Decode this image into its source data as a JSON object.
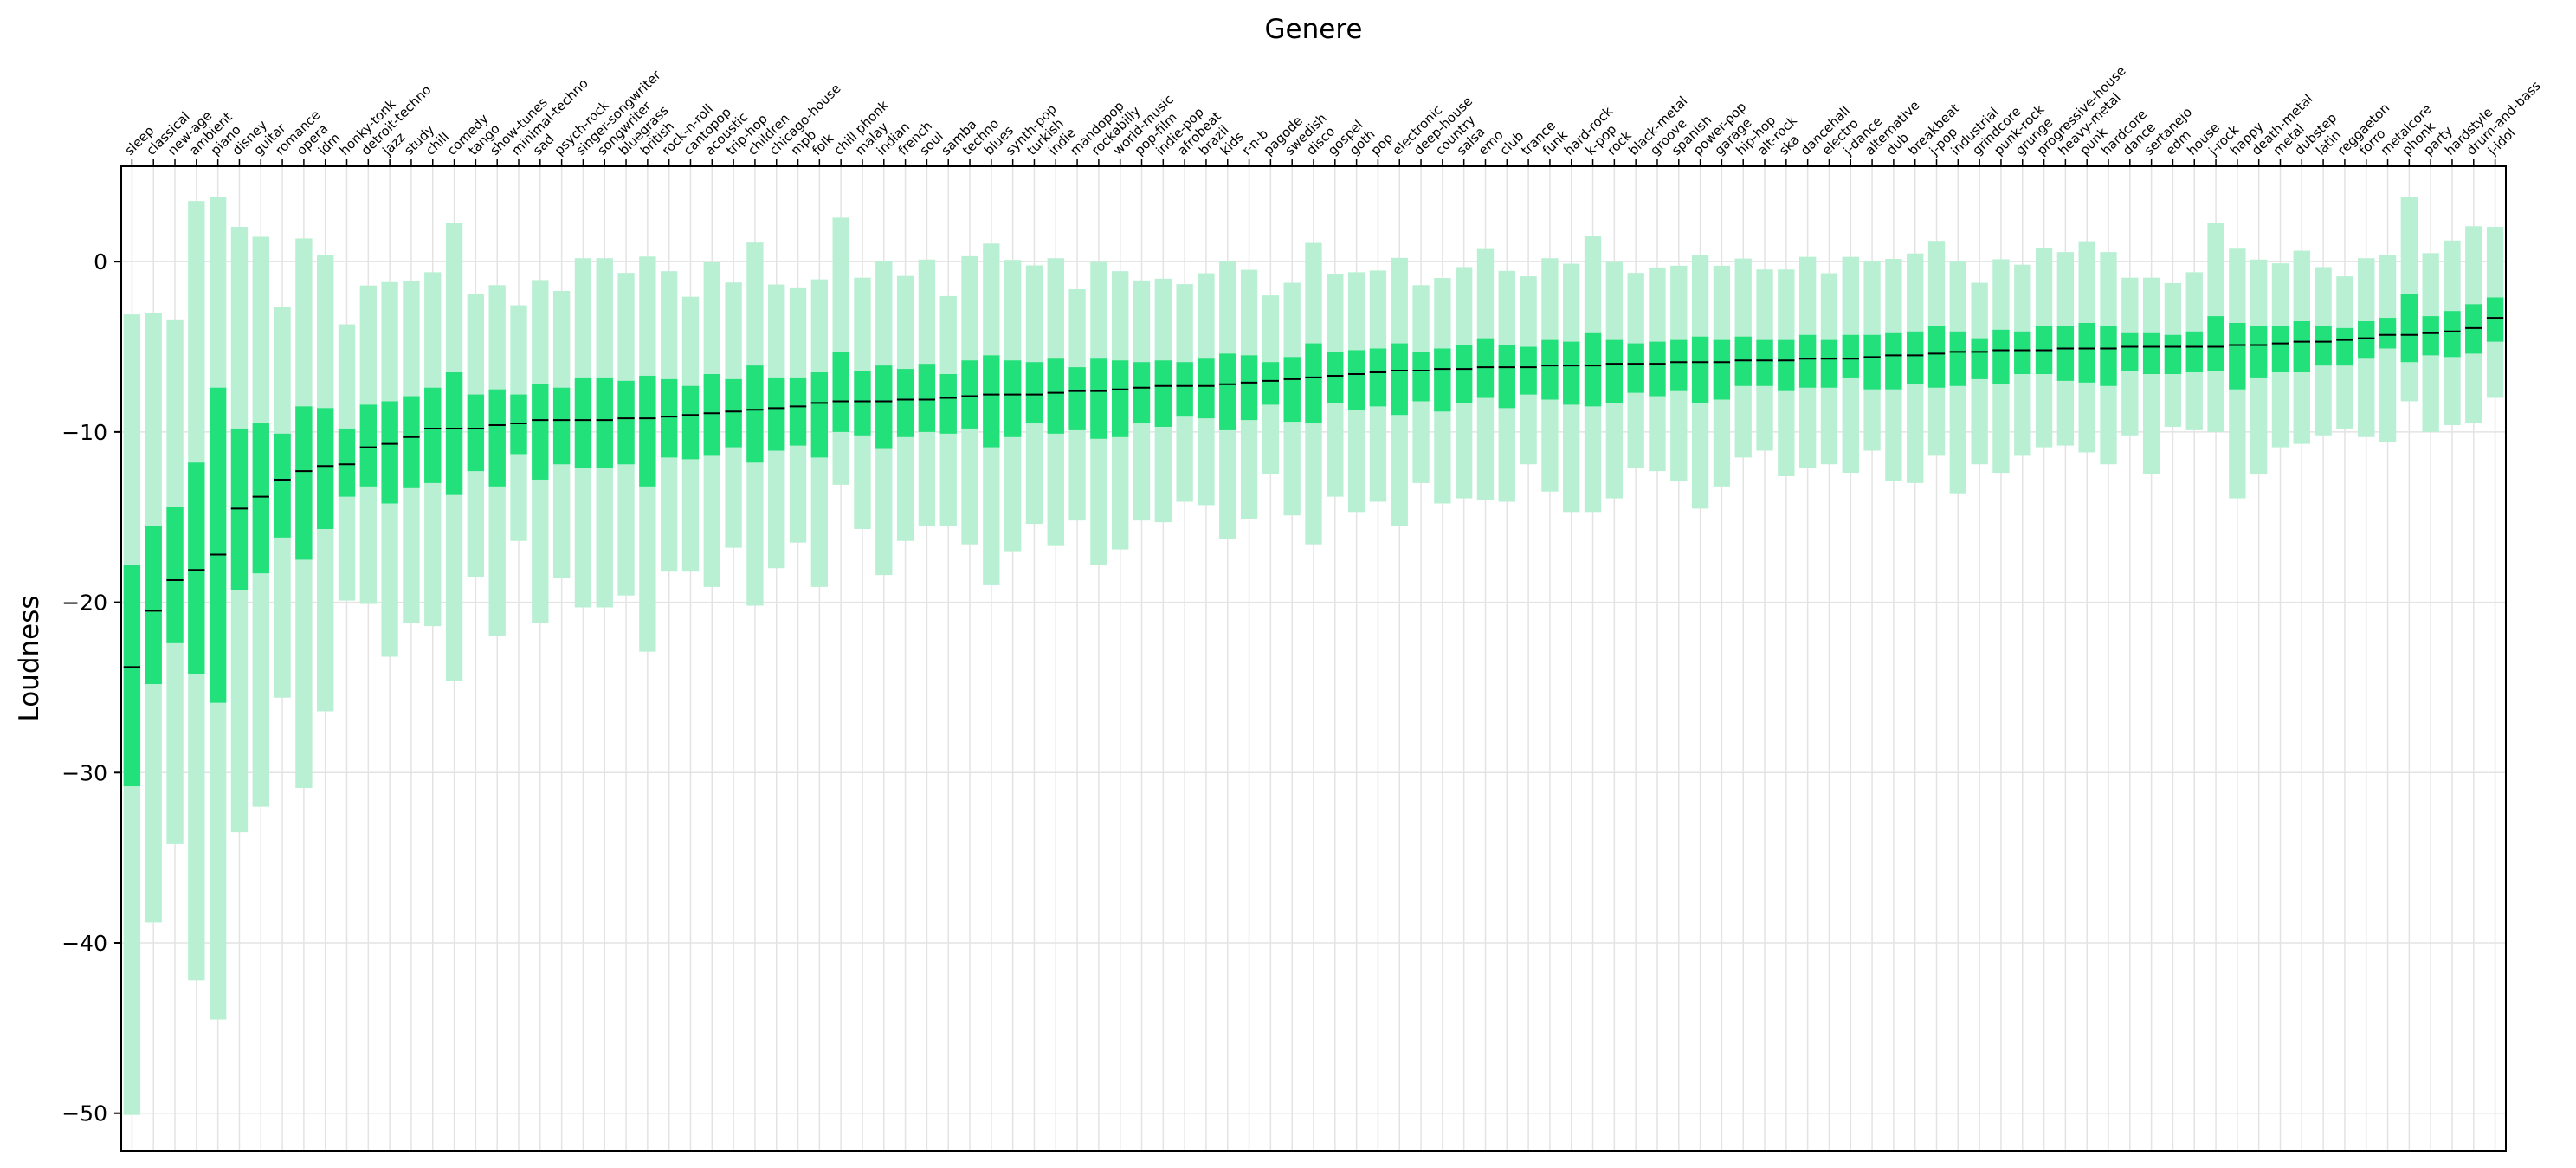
{
  "chart_data": {
    "type": "box",
    "title": "Genere",
    "xlabel": "Genere",
    "ylabel": "Loudness",
    "ylim": [
      -52.2,
      5.6
    ],
    "yticks": [
      0,
      -10,
      -20,
      -30,
      -40,
      -50
    ],
    "ytick_labels": [
      "0",
      "−10",
      "−20",
      "−30",
      "−40",
      "−50"
    ],
    "grid": true,
    "colors": {
      "box": "#22e07a",
      "whisker": "#b9f0d4",
      "median": "#000000",
      "grid": "#e3e3e3",
      "axis": "#000000"
    },
    "categories": [
      "sleep",
      "classical",
      "new-age",
      "ambient",
      "piano",
      "disney",
      "guitar",
      "romance",
      "opera",
      "idm",
      "honky-tonk",
      "detroit-techno",
      "jazz",
      "study",
      "chill",
      "comedy",
      "tango",
      "show-tunes",
      "minimal-techno",
      "sad",
      "psych-rock",
      "singer-songwriter",
      "songwriter",
      "bluegrass",
      "british",
      "rock-n-roll",
      "cantopop",
      "acoustic",
      "trip-hop",
      "children",
      "chicago-house",
      "mpb",
      "folk",
      "chill phonk",
      "malay",
      "indian",
      "french",
      "soul",
      "samba",
      "techno",
      "blues",
      "synth-pop",
      "turkish",
      "indie",
      "mandopop",
      "rockabilly",
      "world-music",
      "pop-film",
      "indie-pop",
      "afrobeat",
      "brazil",
      "kids",
      "r-n-b",
      "pagode",
      "swedish",
      "disco",
      "gospel",
      "goth",
      "pop",
      "electronic",
      "deep-house",
      "country",
      "salsa",
      "emo",
      "club",
      "trance",
      "funk",
      "hard-rock",
      "k-pop",
      "rock",
      "black-metal",
      "groove",
      "spanish",
      "power-pop",
      "garage",
      "hip-hop",
      "alt-rock",
      "ska",
      "dancehall",
      "electro",
      "j-dance",
      "alternative",
      "dub",
      "breakbeat",
      "j-pop",
      "industrial",
      "grindcore",
      "punk-rock",
      "grunge",
      "progressive-house",
      "heavy-metal",
      "punk",
      "hardcore",
      "dance",
      "sertanejo",
      "edm",
      "house",
      "j-rock",
      "happy",
      "death-metal",
      "metal",
      "dubstep",
      "latin",
      "reggaeton",
      "forro",
      "metalcore",
      "phonk",
      "party",
      "hardstyle",
      "drum-and-bass",
      "j-idol"
    ],
    "medians": [
      -23.8,
      -20.5,
      -18.7,
      -18.1,
      -17.2,
      -14.5,
      -13.8,
      -12.8,
      -12.3,
      -12.0,
      -11.9,
      -10.9,
      -10.7,
      -10.3,
      -9.8,
      -9.8,
      -9.8,
      -9.6,
      -9.5,
      -9.3,
      -9.3,
      -9.3,
      -9.3,
      -9.2,
      -9.2,
      -9.1,
      -9.0,
      -8.9,
      -8.8,
      -8.7,
      -8.6,
      -8.5,
      -8.3,
      -8.2,
      -8.2,
      -8.2,
      -8.1,
      -8.1,
      -8.0,
      -7.9,
      -7.8,
      -7.8,
      -7.8,
      -7.7,
      -7.6,
      -7.6,
      -7.5,
      -7.4,
      -7.3,
      -7.3,
      -7.3,
      -7.2,
      -7.1,
      -7.0,
      -6.9,
      -6.8,
      -6.7,
      -6.6,
      -6.5,
      -6.4,
      -6.4,
      -6.3,
      -6.3,
      -6.2,
      -6.2,
      -6.2,
      -6.1,
      -6.1,
      -6.1,
      -6.0,
      -6.0,
      -6.0,
      -5.9,
      -5.9,
      -5.9,
      -5.8,
      -5.8,
      -5.8,
      -5.7,
      -5.7,
      -5.7,
      -5.6,
      -5.5,
      -5.5,
      -5.4,
      -5.3,
      -5.3,
      -5.2,
      -5.2,
      -5.2,
      -5.1,
      -5.1,
      -5.1,
      -5.0,
      -5.0,
      -5.0,
      -5.0,
      -5.0,
      -4.9,
      -4.9,
      -4.8,
      -4.7,
      -4.7,
      -4.6,
      -4.5,
      -4.3,
      -4.3,
      -4.2,
      -4.1,
      -3.9,
      -3.3
    ],
    "q1": [
      -30.8,
      -24.8,
      -22.4,
      -24.2,
      -25.9,
      -19.3,
      -18.3,
      -16.2,
      -17.5,
      -15.7,
      -13.8,
      -13.2,
      -14.2,
      -13.3,
      -13.0,
      -13.7,
      -12.3,
      -13.2,
      -11.3,
      -12.8,
      -11.9,
      -12.1,
      -12.1,
      -11.9,
      -13.2,
      -11.5,
      -11.6,
      -11.4,
      -10.9,
      -11.8,
      -11.1,
      -10.8,
      -11.5,
      -10.0,
      -10.2,
      -11.0,
      -10.3,
      -10.0,
      -10.1,
      -9.8,
      -10.9,
      -10.3,
      -9.5,
      -10.1,
      -9.9,
      -10.4,
      -10.3,
      -9.5,
      -9.7,
      -9.1,
      -9.2,
      -9.9,
      -9.3,
      -8.4,
      -9.4,
      -9.5,
      -8.3,
      -8.7,
      -8.5,
      -9.0,
      -8.2,
      -8.8,
      -8.3,
      -8.0,
      -8.6,
      -7.8,
      -8.1,
      -8.4,
      -8.5,
      -8.3,
      -7.7,
      -7.9,
      -7.6,
      -8.3,
      -8.1,
      -7.3,
      -7.3,
      -7.6,
      -7.4,
      -7.4,
      -6.8,
      -7.5,
      -7.5,
      -7.2,
      -7.4,
      -7.3,
      -6.9,
      -7.2,
      -6.6,
      -6.6,
      -7.0,
      -7.1,
      -7.3,
      -6.4,
      -6.6,
      -6.6,
      -6.5,
      -6.4,
      -7.5,
      -6.8,
      -6.5,
      -6.5,
      -6.1,
      -6.1,
      -5.7,
      -5.1,
      -5.9,
      -5.5,
      -5.6,
      -5.4,
      -4.7
    ],
    "q3": [
      -17.8,
      -15.5,
      -14.4,
      -11.8,
      -7.4,
      -9.8,
      -9.5,
      -10.1,
      -8.5,
      -8.6,
      -9.8,
      -8.4,
      -8.2,
      -7.9,
      -7.4,
      -6.5,
      -7.8,
      -7.5,
      -7.8,
      -7.2,
      -7.4,
      -6.8,
      -6.8,
      -7.0,
      -6.7,
      -6.9,
      -7.3,
      -6.6,
      -6.9,
      -6.1,
      -6.8,
      -6.8,
      -6.5,
      -5.3,
      -6.4,
      -6.1,
      -6.3,
      -6.0,
      -6.6,
      -5.8,
      -5.5,
      -5.8,
      -5.9,
      -5.7,
      -6.2,
      -5.7,
      -5.8,
      -5.9,
      -5.8,
      -5.9,
      -5.7,
      -5.4,
      -5.5,
      -5.9,
      -5.6,
      -4.8,
      -5.3,
      -5.2,
      -5.1,
      -4.8,
      -5.3,
      -5.1,
      -4.9,
      -4.5,
      -4.9,
      -5.0,
      -4.6,
      -4.7,
      -4.2,
      -4.6,
      -4.8,
      -4.7,
      -4.6,
      -4.4,
      -4.6,
      -4.4,
      -4.6,
      -4.6,
      -4.3,
      -4.6,
      -4.3,
      -4.3,
      -4.2,
      -4.1,
      -3.8,
      -4.1,
      -4.5,
      -4.0,
      -4.1,
      -3.8,
      -3.8,
      -3.6,
      -3.8,
      -4.2,
      -4.2,
      -4.3,
      -4.1,
      -3.2,
      -3.6,
      -3.8,
      -3.8,
      -3.5,
      -3.8,
      -3.9,
      -3.5,
      -3.3,
      -1.9,
      -3.2,
      -2.9,
      -2.5,
      -2.1
    ],
    "whisker_low": [
      -50.1,
      -38.8,
      -34.2,
      -42.2,
      -44.5,
      -33.5,
      -32.0,
      -25.6,
      -30.9,
      -26.4,
      -19.9,
      -20.1,
      -23.2,
      -21.2,
      -21.4,
      -24.6,
      -18.5,
      -22.0,
      -16.4,
      -21.2,
      -18.6,
      -20.3,
      -20.3,
      -19.6,
      -22.9,
      -18.2,
      -18.2,
      -19.1,
      -16.8,
      -20.2,
      -18.0,
      -16.5,
      -19.1,
      -13.1,
      -15.7,
      -18.4,
      -16.4,
      -15.5,
      -15.5,
      -16.6,
      -19.0,
      -17.0,
      -15.4,
      -16.7,
      -15.2,
      -17.8,
      -16.9,
      -15.2,
      -15.3,
      -14.1,
      -14.3,
      -16.3,
      -15.1,
      -12.5,
      -14.9,
      -16.6,
      -13.8,
      -14.7,
      -14.1,
      -15.5,
      -13.0,
      -14.2,
      -13.9,
      -14.0,
      -14.1,
      -11.9,
      -13.5,
      -14.7,
      -14.7,
      -13.9,
      -12.1,
      -12.3,
      -12.9,
      -14.5,
      -13.2,
      -11.5,
      -11.1,
      -12.6,
      -12.1,
      -11.9,
      -12.4,
      -11.1,
      -12.9,
      -13.0,
      -11.4,
      -13.6,
      -11.9,
      -12.4,
      -11.4,
      -10.9,
      -10.8,
      -11.2,
      -11.9,
      -10.2,
      -12.5,
      -9.7,
      -9.9,
      -10.0,
      -13.9,
      -12.5,
      -10.9,
      -10.7,
      -10.2,
      -9.8,
      -10.3,
      -10.6,
      -8.2,
      -10.0,
      -9.6,
      -9.5,
      -8.0
    ]
  }
}
